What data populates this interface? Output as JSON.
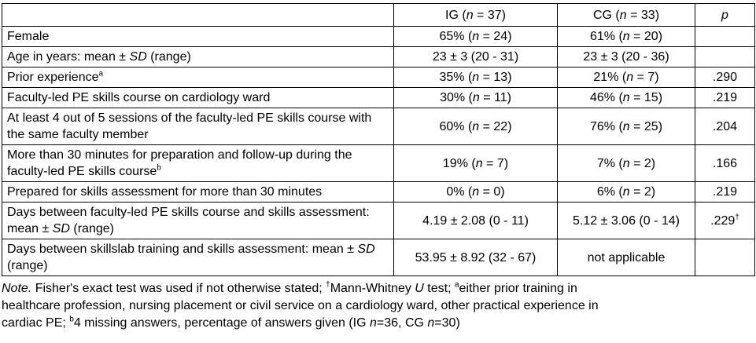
{
  "table": {
    "columns": [
      {
        "label": ""
      },
      {
        "label": "IG (*n* = 37)"
      },
      {
        "label": "CG (*n* = 33)"
      },
      {
        "label": "*p*"
      }
    ],
    "rows": [
      {
        "label": "Female",
        "ig": "65% (*n* = 24)",
        "cg": "61% (*n* = 20)",
        "p": ""
      },
      {
        "label": "Age in years: mean ± *SD* (range)",
        "ig": "23 ± 3 (20 - 31)",
        "cg": "23 ± 3 (20 - 36)",
        "p": ""
      },
      {
        "label": "Prior experience^a^",
        "ig": "35% (*n* = 13)",
        "cg": "21% (*n* = 7)",
        "p": ".290"
      },
      {
        "label": "Faculty-led PE skills course on cardiology ward",
        "ig": "30% (*n* = 11)",
        "cg": "46% (*n* = 15)",
        "p": ".219"
      },
      {
        "label": "At least 4 out of 5 sessions of the faculty-led PE skills course with the same faculty member",
        "ig": "60% (*n* = 22)",
        "cg": "76% (*n* = 25)",
        "p": ".204"
      },
      {
        "label": "More than 30 minutes for preparation and follow-up during the faculty-led PE skills course^b^",
        "ig": "19% (*n* = 7)",
        "cg": "7% (*n* = 2)",
        "p": ".166"
      },
      {
        "label": "Prepared for skills assessment for more than 30 minutes",
        "ig": "0% (*n* = 0)",
        "cg": "6% (*n* = 2)",
        "p": ".219"
      },
      {
        "label": "Days between faculty-led PE skills course and skills assessment: mean ± *SD* (range)",
        "ig": "4.19 ± 2.08 (0 - 11)",
        "cg": "5.12 ± 3.06 (0 - 14)",
        "p": ".229^†^"
      },
      {
        "label": "Days between skillslab training and skills assessment: mean ± *SD* (range)",
        "ig": "53.95 ± 8.92 (32 - 67)",
        "cg": "not applicable",
        "p": ""
      }
    ]
  },
  "note": {
    "lines": [
      "*Note.* Fisher's exact test was used if not otherwise stated; ^†^Mann-Whitney *U* test; ^a^either prior training in",
      "healthcare profession, nursing placement or civil service on a cardiology ward, other practical experience in",
      "cardiac PE; ^b^4 missing answers, percentage of answers given (IG *n*=36, CG *n*=30)"
    ]
  }
}
